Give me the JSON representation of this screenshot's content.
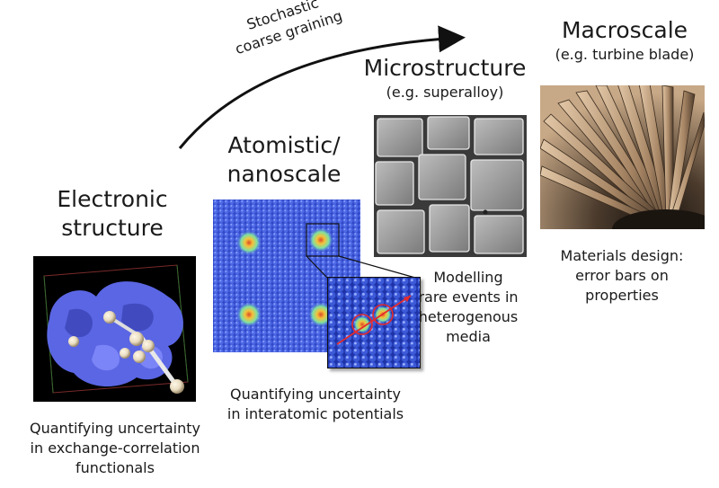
{
  "arrow": {
    "label_line1": "Stochastic",
    "label_line2": "coarse graining"
  },
  "electronic": {
    "title_line1": "Electronic",
    "title_line2": "structure",
    "caption_line1": "Quantifying uncertainty",
    "caption_line2": "in exchange-correlation",
    "caption_line3": "functionals"
  },
  "atomistic": {
    "title_line1": "Atomistic/",
    "title_line2": "nanoscale",
    "caption_line1": "Quantifying uncertainty",
    "caption_line2": "in interatomic potentials"
  },
  "micro": {
    "title": "Microstructure",
    "subtitle": "(e.g. superalloy)",
    "caption_line1": "Modelling",
    "caption_line2": "rare events in",
    "caption_line3": "heterogenous",
    "caption_line4": "media"
  },
  "macro": {
    "title": "Macroscale",
    "subtitle": "(e.g. turbine blade)",
    "caption_line1": "Materials design:",
    "caption_line2": "error bars on",
    "caption_line3": "properties"
  },
  "colors": {
    "text": "#1a1a1a",
    "isosurface": "#5f6cf0",
    "atoms": "#3f57d6",
    "defect_hot": "#f5c23a",
    "highlight_circle": "#e52b2b",
    "micro_gray": "#8c8c8c",
    "turbine_bronze": "#a78665"
  }
}
